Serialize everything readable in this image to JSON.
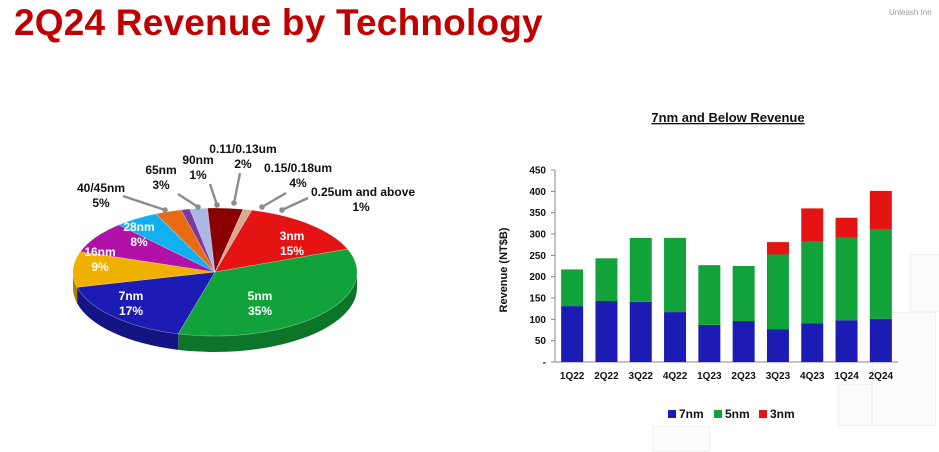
{
  "header": {
    "title": "2Q24 Revenue by Technology",
    "tagline": "Unleash Inn"
  },
  "colors": {
    "title": "#c00000",
    "n7": "#1c1cb4",
    "n5": "#11a33a",
    "n3": "#e41414"
  },
  "chart_data": [
    {
      "type": "pie",
      "title": "",
      "slices": [
        {
          "label": "3nm",
          "value": 15,
          "pct_label": "15%",
          "color": "#e41414"
        },
        {
          "label": "5nm",
          "value": 35,
          "pct_label": "35%",
          "color": "#11a33a"
        },
        {
          "label": "7nm",
          "value": 17,
          "pct_label": "17%",
          "color": "#1c1cb4"
        },
        {
          "label": "16nm",
          "value": 9,
          "pct_label": "9%",
          "color": "#f0b000"
        },
        {
          "label": "28nm",
          "value": 8,
          "pct_label": "8%",
          "color": "#b012a8"
        },
        {
          "label": "40/45nm",
          "value": 5,
          "pct_label": "5%",
          "color": "#12b0ee"
        },
        {
          "label": "65nm",
          "value": 3,
          "pct_label": "3%",
          "color": "#ea6a12"
        },
        {
          "label": "90nm",
          "value": 1,
          "pct_label": "1%",
          "color": "#7a3aa0"
        },
        {
          "label": "0.11/0.13um",
          "value": 2,
          "pct_label": "2%",
          "color": "#aab8e8"
        },
        {
          "label": "0.15/0.18um",
          "value": 4,
          "pct_label": "4%",
          "color": "#8a0000"
        },
        {
          "label": "0.25um and above",
          "value": 1,
          "pct_label": "1%",
          "color": "#d9a890"
        }
      ]
    },
    {
      "type": "bar",
      "stacked": true,
      "title": "7nm and Below Revenue",
      "xlabel": "",
      "ylabel": "Revenue (NT$B)",
      "ylim": [
        0,
        450
      ],
      "yticks": [
        0,
        50,
        100,
        150,
        200,
        250,
        300,
        350,
        400,
        450
      ],
      "zero_tick_label": "-",
      "categories": [
        "1Q22",
        "2Q22",
        "3Q22",
        "4Q22",
        "1Q23",
        "2Q23",
        "3Q23",
        "4Q23",
        "1Q24",
        "2Q24"
      ],
      "series": [
        {
          "name": "7nm",
          "color": "#1c1cb4",
          "values": [
            131,
            143,
            141,
            117,
            87,
            96,
            77,
            91,
            98,
            101
          ]
        },
        {
          "name": "5nm",
          "color": "#11a33a",
          "values": [
            86,
            100,
            150,
            174,
            140,
            129,
            175,
            191,
            193,
            209
          ]
        },
        {
          "name": "3nm",
          "color": "#e41414",
          "values": [
            0,
            0,
            0,
            0,
            0,
            0,
            29,
            78,
            47,
            91
          ]
        }
      ],
      "legend_position": "bottom",
      "grid": false
    }
  ]
}
